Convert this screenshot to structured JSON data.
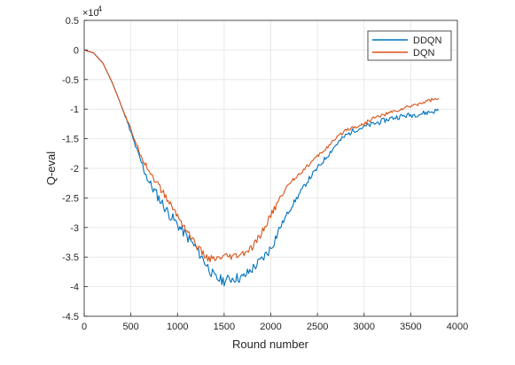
{
  "chart_data": {
    "type": "line",
    "title": "",
    "xlabel": "Round number",
    "ylabel": "Q-eval",
    "xlim": [
      0,
      4000
    ],
    "ylim": [
      -4.5,
      0.5
    ],
    "y_multiplier": "×10",
    "y_exponent": "4",
    "xticks": [
      0,
      500,
      1000,
      1500,
      2000,
      2500,
      3000,
      3500,
      4000
    ],
    "xtick_labels": [
      "0",
      "500",
      "1000",
      "1500",
      "2000",
      "2500",
      "3000",
      "3500",
      "4000"
    ],
    "yticks": [
      0.5,
      0,
      -0.5,
      -1,
      -1.5,
      -2,
      -2.5,
      -3,
      -3.5,
      -4,
      -4.5
    ],
    "ytick_labels": [
      "0.5",
      "0",
      "-0.5",
      "-1",
      "-1.5",
      "-2",
      "-2.5",
      "-3",
      "-3.5",
      "-4",
      "-4.5"
    ],
    "grid": true,
    "legend_position": "top-right",
    "series": [
      {
        "name": "DDQN",
        "color": "#0072BD",
        "x": [
          0,
          100,
          200,
          300,
          400,
          500,
          600,
          700,
          800,
          900,
          1000,
          1100,
          1200,
          1300,
          1400,
          1500,
          1600,
          1700,
          1800,
          1900,
          2000,
          2100,
          2200,
          2300,
          2400,
          2500,
          2600,
          2700,
          2800,
          2900,
          3000,
          3100,
          3200,
          3300,
          3400,
          3500,
          3600,
          3700,
          3800
        ],
        "y": [
          0,
          -0.05,
          -0.22,
          -0.55,
          -0.95,
          -1.4,
          -1.85,
          -2.25,
          -2.5,
          -2.75,
          -2.95,
          -3.15,
          -3.35,
          -3.6,
          -3.85,
          -3.9,
          -3.85,
          -3.85,
          -3.7,
          -3.55,
          -3.35,
          -3.0,
          -2.7,
          -2.45,
          -2.2,
          -2.0,
          -1.8,
          -1.6,
          -1.45,
          -1.35,
          -1.3,
          -1.25,
          -1.2,
          -1.15,
          -1.12,
          -1.1,
          -1.08,
          -1.05,
          -1.02
        ]
      },
      {
        "name": "DQN",
        "color": "#D95319",
        "x": [
          0,
          100,
          200,
          300,
          400,
          500,
          600,
          700,
          800,
          900,
          1000,
          1100,
          1200,
          1300,
          1400,
          1500,
          1600,
          1700,
          1800,
          1900,
          2000,
          2100,
          2200,
          2300,
          2400,
          2500,
          2600,
          2700,
          2800,
          2900,
          3000,
          3100,
          3200,
          3300,
          3400,
          3500,
          3600,
          3700,
          3800
        ],
        "y": [
          0,
          -0.05,
          -0.22,
          -0.55,
          -0.95,
          -1.35,
          -1.75,
          -2.05,
          -2.3,
          -2.55,
          -2.8,
          -3.05,
          -3.3,
          -3.5,
          -3.55,
          -3.5,
          -3.5,
          -3.45,
          -3.35,
          -3.1,
          -2.8,
          -2.5,
          -2.25,
          -2.1,
          -1.95,
          -1.8,
          -1.65,
          -1.5,
          -1.35,
          -1.3,
          -1.25,
          -1.15,
          -1.1,
          -1.05,
          -1.0,
          -0.95,
          -0.9,
          -0.85,
          -0.82
        ]
      }
    ]
  }
}
